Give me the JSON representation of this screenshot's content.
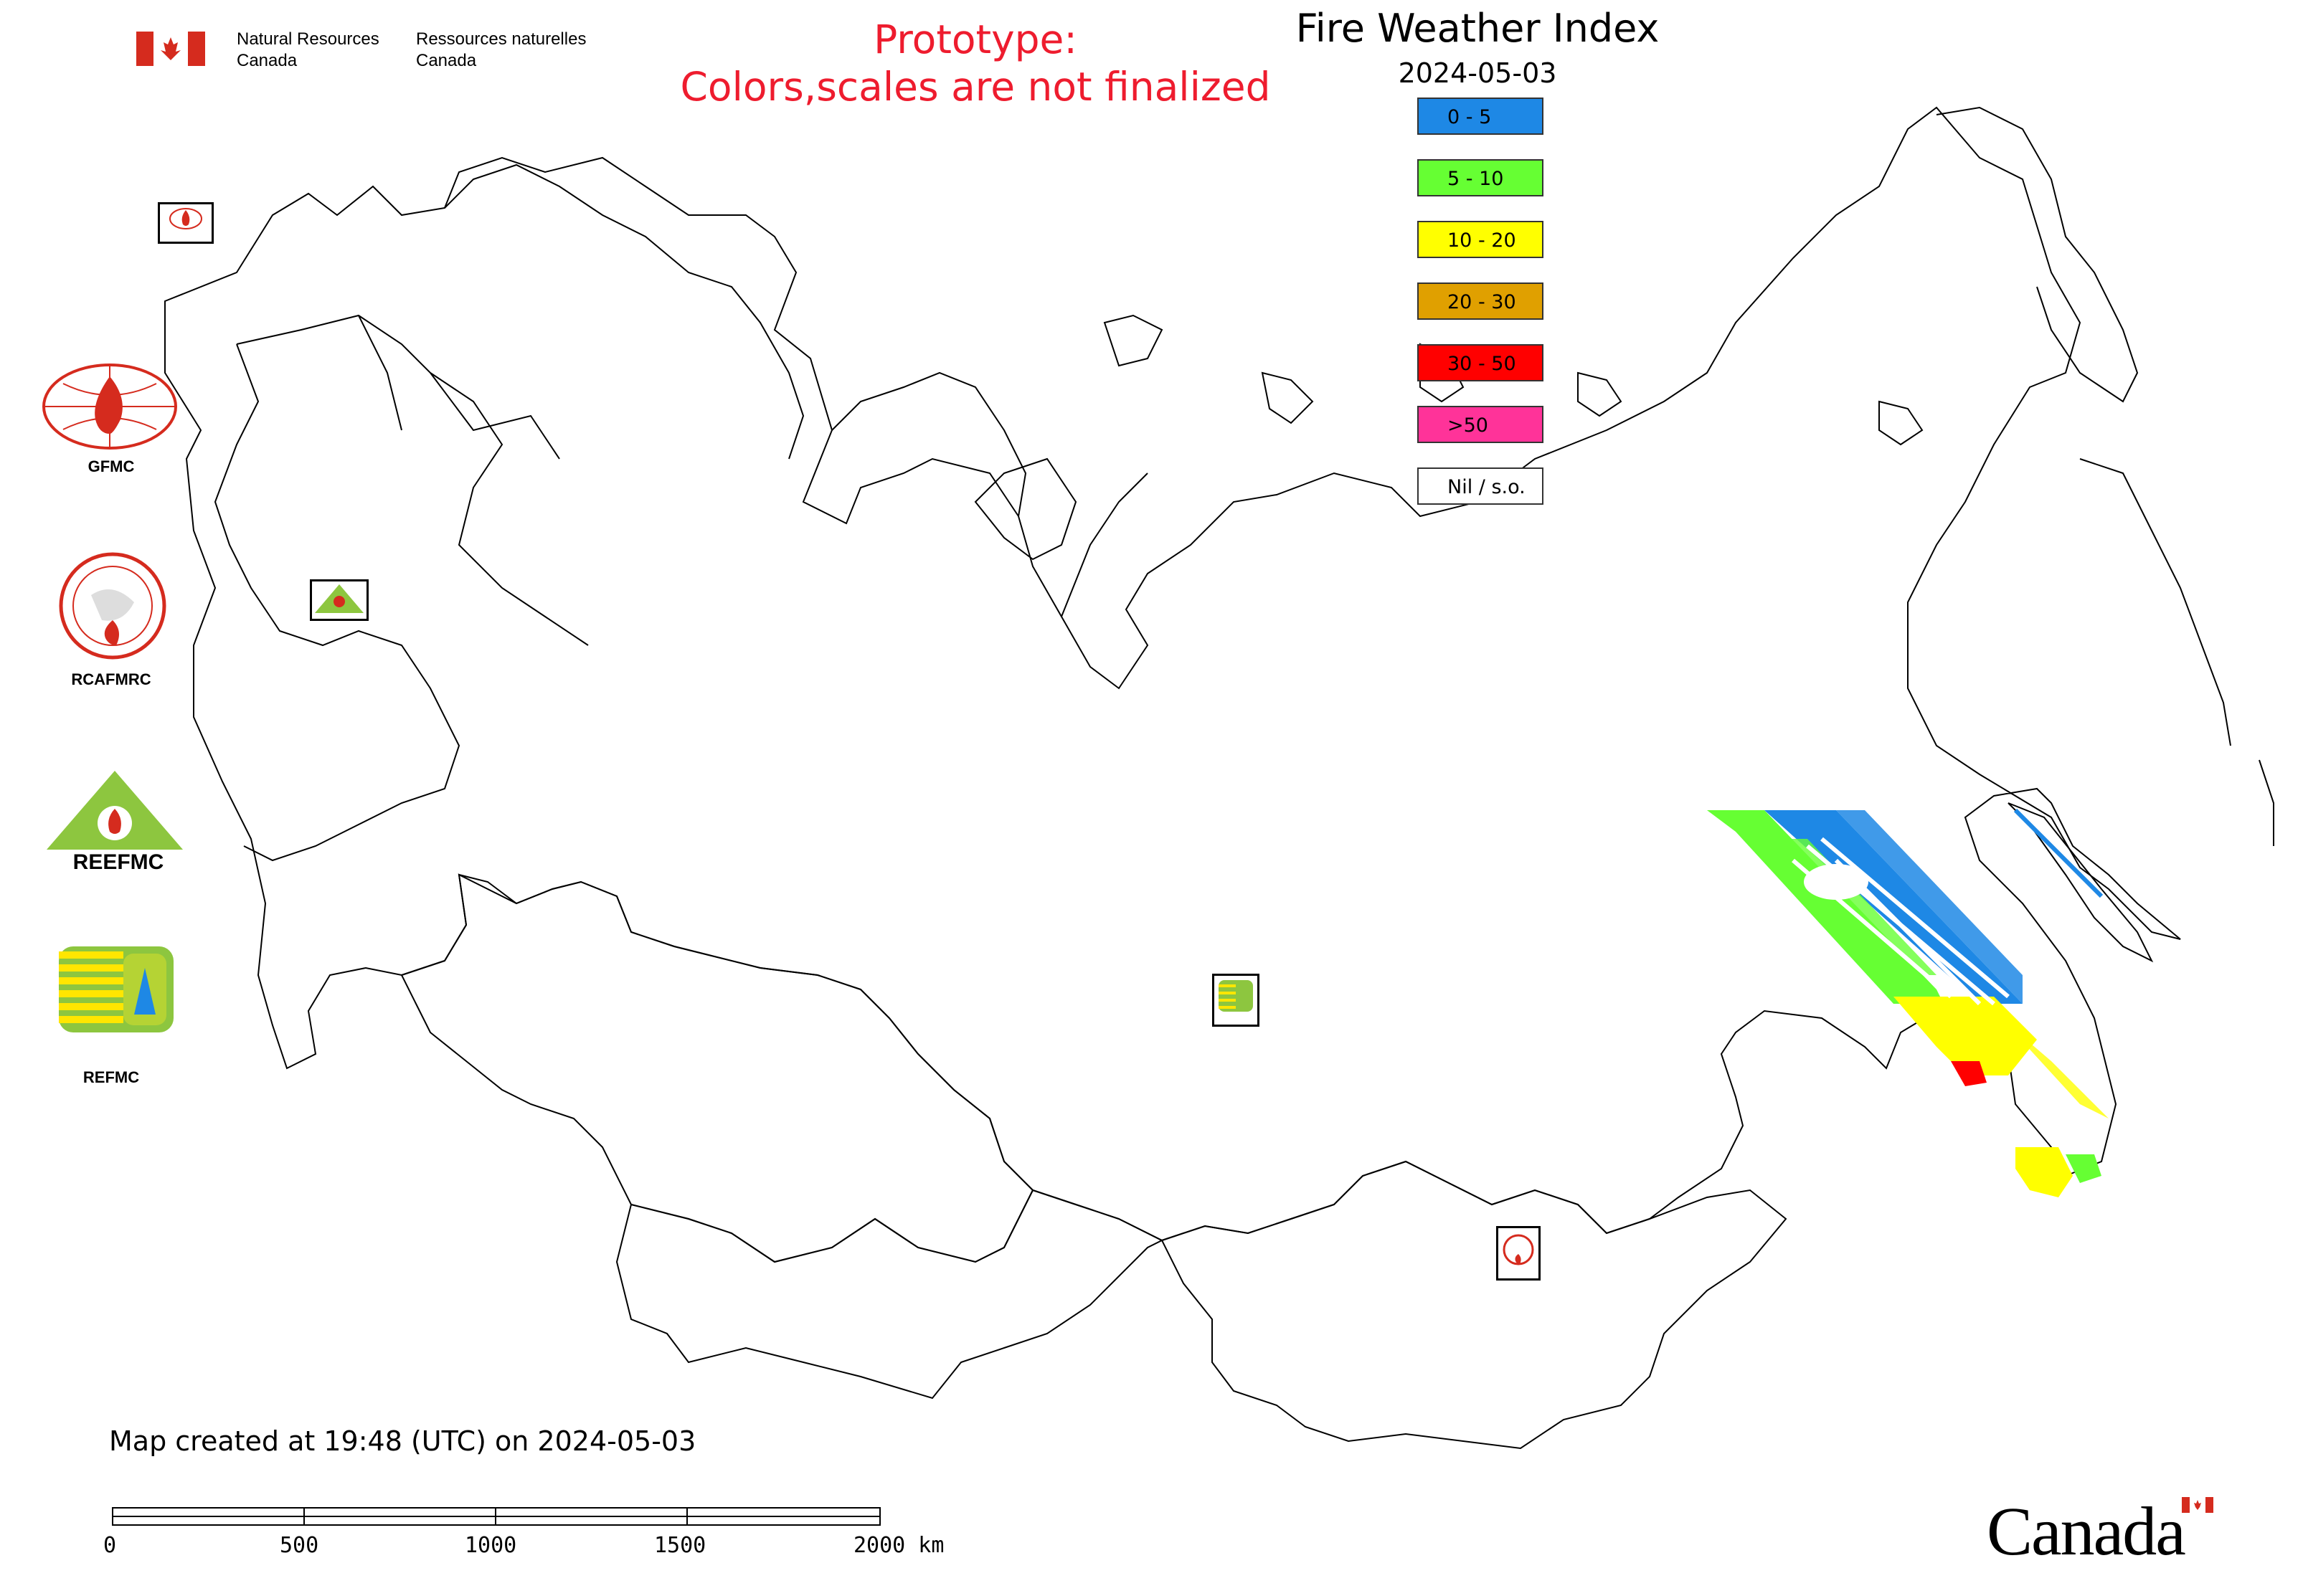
{
  "header": {
    "org_en_line1": "Natural Resources",
    "org_en_line2": "Canada",
    "org_fr_line1": "Ressources naturelles",
    "org_fr_line2": "Canada",
    "prototype_line1": "Prototype:",
    "prototype_line2": "Colors,scales are not finalized"
  },
  "title": "Fire Weather Index",
  "date": "2024-05-03",
  "legend": [
    {
      "label": "0 - 5",
      "color": "#1e88e5"
    },
    {
      "label": "5 - 10",
      "color": "#66ff33"
    },
    {
      "label": "10 - 20",
      "color": "#ffff00"
    },
    {
      "label": "20 - 30",
      "color": "#e0a000"
    },
    {
      "label": "30 - 50",
      "color": "#ff0000"
    },
    {
      "label": ">50",
      "color": "#ff3399"
    },
    {
      "label": "Nil / s.o.",
      "color": "#ffffff"
    }
  ],
  "logos": {
    "gfmc": "GFMC",
    "rcafmrc": "RCAFMRC",
    "reefmc": "REEFMC",
    "refmc": "REFMC",
    "reefmc_mark": "REEFMC",
    "rcafmrc_mark": "RCAFMRC"
  },
  "footer": {
    "created": "Map created at 19:48 (UTC) on 2024-05-03",
    "wordmark": "Canada"
  },
  "scale_bar": {
    "labels": [
      "0",
      "500",
      "1000",
      "1500",
      "2000 km"
    ]
  }
}
